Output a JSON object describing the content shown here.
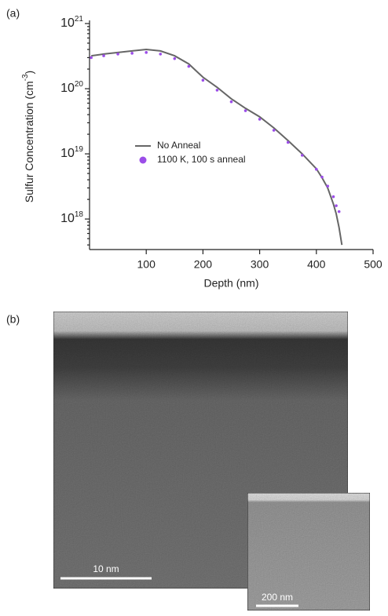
{
  "chart_data": {
    "type": "line",
    "x_label": "Depth (nm)",
    "y_label": "Sulfur Concentration (cm^-3)",
    "xlim": [
      0,
      500
    ],
    "xticks": [
      100,
      200,
      300,
      400,
      500
    ],
    "ylim": [
      3.4e+17,
      1e+21
    ],
    "log_y": true,
    "yticks": [
      {
        "value": 1e+21,
        "label": "10^21"
      },
      {
        "value": 1e+20,
        "label": "10^20"
      },
      {
        "value": 1e+19,
        "label": "10^19"
      },
      {
        "value": 1e+18,
        "label": "10^18"
      }
    ],
    "series": [
      {
        "name": "No Anneal",
        "kind": "line",
        "color": "#666666",
        "x": [
          3,
          25,
          50,
          75,
          100,
          125,
          150,
          175,
          200,
          225,
          250,
          275,
          300,
          325,
          350,
          375,
          400,
          410,
          420,
          430,
          435,
          440,
          445
        ],
        "values": [
          3.2e+20,
          3.4e+20,
          3.6e+20,
          3.8e+20,
          4e+20,
          3.8e+20,
          3.2e+20,
          2.4e+20,
          1.5e+20,
          1.05e+20,
          7e+19,
          5e+19,
          3.7e+19,
          2.5e+19,
          1.6e+19,
          1e+19,
          5.9e+18,
          4.3e+18,
          3e+18,
          1.7e+18,
          1.2e+18,
          7.4e+17,
          4e+17
        ]
      },
      {
        "name": "1100 K, 100 s anneal",
        "kind": "scatter",
        "color": "#9b4de8",
        "x": [
          3,
          25,
          50,
          75,
          100,
          125,
          150,
          175,
          200,
          225,
          250,
          275,
          300,
          325,
          350,
          375,
          400,
          410,
          420,
          430,
          435,
          440
        ],
        "values": [
          3e+20,
          3.2e+20,
          3.4e+20,
          3.5e+20,
          3.6e+20,
          3.4e+20,
          2.9e+20,
          2.2e+20,
          1.35e+20,
          9.5e+19,
          6.3e+19,
          4.6e+19,
          3.4e+19,
          2.3e+19,
          1.5e+19,
          9.5e+18,
          5.8e+18,
          4.4e+18,
          3.2e+18,
          2.2e+18,
          1.6e+18,
          1.3e+18
        ]
      }
    ]
  },
  "figure": {
    "panel_a_label": "(a)",
    "panel_b_label": "(b)",
    "scale_bar_main": "10 nm",
    "scale_bar_inset": "200 nm"
  }
}
